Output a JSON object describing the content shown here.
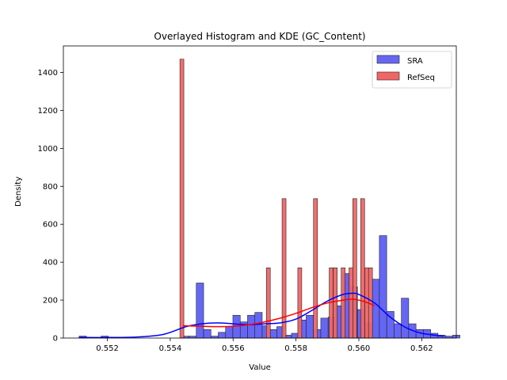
{
  "chart_data": {
    "type": "histogram",
    "title": "Overlayed Histogram and KDE (GC_Content)",
    "xlabel": "Value",
    "ylabel": "Density",
    "xlim": [
      0.5506,
      0.5631
    ],
    "ylim": [
      0,
      1540
    ],
    "xticks": [
      0.552,
      0.554,
      0.556,
      0.558,
      0.56,
      0.562
    ],
    "xtick_labels": [
      "0.552",
      "0.554",
      "0.556",
      "0.558",
      "0.560",
      "0.562"
    ],
    "yticks": [
      0,
      200,
      400,
      600,
      800,
      1000,
      1200,
      1400
    ],
    "ytick_labels": [
      "0",
      "200",
      "400",
      "600",
      "800",
      "1000",
      "1200",
      "1400"
    ],
    "legend": {
      "position": "top-right"
    },
    "series": [
      {
        "name": "SRA",
        "color": "#0000ff",
        "fill_color": "#6666f5",
        "bin_start": 0.5511,
        "bin_width": 0.000233,
        "values": [
          10,
          0,
          0,
          10,
          0,
          0,
          0,
          0,
          0,
          0,
          0,
          0,
          0,
          0,
          10,
          10,
          290,
          45,
          10,
          30,
          60,
          120,
          85,
          120,
          135,
          65,
          45,
          60,
          15,
          25,
          95,
          120,
          45,
          105,
          110,
          170,
          340,
          270,
          150,
          80,
          310,
          540,
          140,
          75,
          210,
          75,
          45,
          45,
          25,
          15,
          10,
          15
        ]
      },
      {
        "name": "RefSeq",
        "color": "#ff0000",
        "fill_color": "#f06666",
        "bar_width": 0.000125,
        "bars": [
          {
            "x": 0.55437,
            "v": 1470
          },
          {
            "x": 0.55712,
            "v": 370
          },
          {
            "x": 0.55762,
            "v": 735
          },
          {
            "x": 0.55812,
            "v": 370
          },
          {
            "x": 0.55862,
            "v": 735
          },
          {
            "x": 0.55912,
            "v": 370
          },
          {
            "x": 0.55925,
            "v": 370
          },
          {
            "x": 0.5595,
            "v": 370
          },
          {
            "x": 0.55975,
            "v": 370
          },
          {
            "x": 0.55987,
            "v": 735
          },
          {
            "x": 0.56012,
            "v": 735
          },
          {
            "x": 0.56025,
            "v": 370
          },
          {
            "x": 0.56037,
            "v": 370
          }
        ]
      }
    ],
    "kde": [
      {
        "series": "SRA",
        "color": "#0000ff",
        "x": [
          0.5511,
          0.552,
          0.553,
          0.5538,
          0.5545,
          0.555,
          0.5555,
          0.556,
          0.5565,
          0.557,
          0.5575,
          0.558,
          0.5585,
          0.559,
          0.5595,
          0.5598,
          0.56,
          0.5605,
          0.561,
          0.5615,
          0.562,
          0.5627
        ],
        "y": [
          3,
          3,
          6,
          20,
          60,
          75,
          80,
          75,
          70,
          75,
          80,
          100,
          145,
          195,
          230,
          236,
          230,
          185,
          110,
          55,
          25,
          10
        ]
      },
      {
        "series": "RefSeq",
        "color": "#ff0000",
        "x": [
          0.5544,
          0.555,
          0.5555,
          0.556,
          0.5565,
          0.557,
          0.5575,
          0.558,
          0.5585,
          0.559,
          0.5595,
          0.5598,
          0.56,
          0.5603,
          0.5605
        ],
        "y": [
          65,
          62,
          60,
          62,
          70,
          85,
          105,
          130,
          160,
          185,
          200,
          205,
          200,
          185,
          170
        ]
      }
    ]
  }
}
